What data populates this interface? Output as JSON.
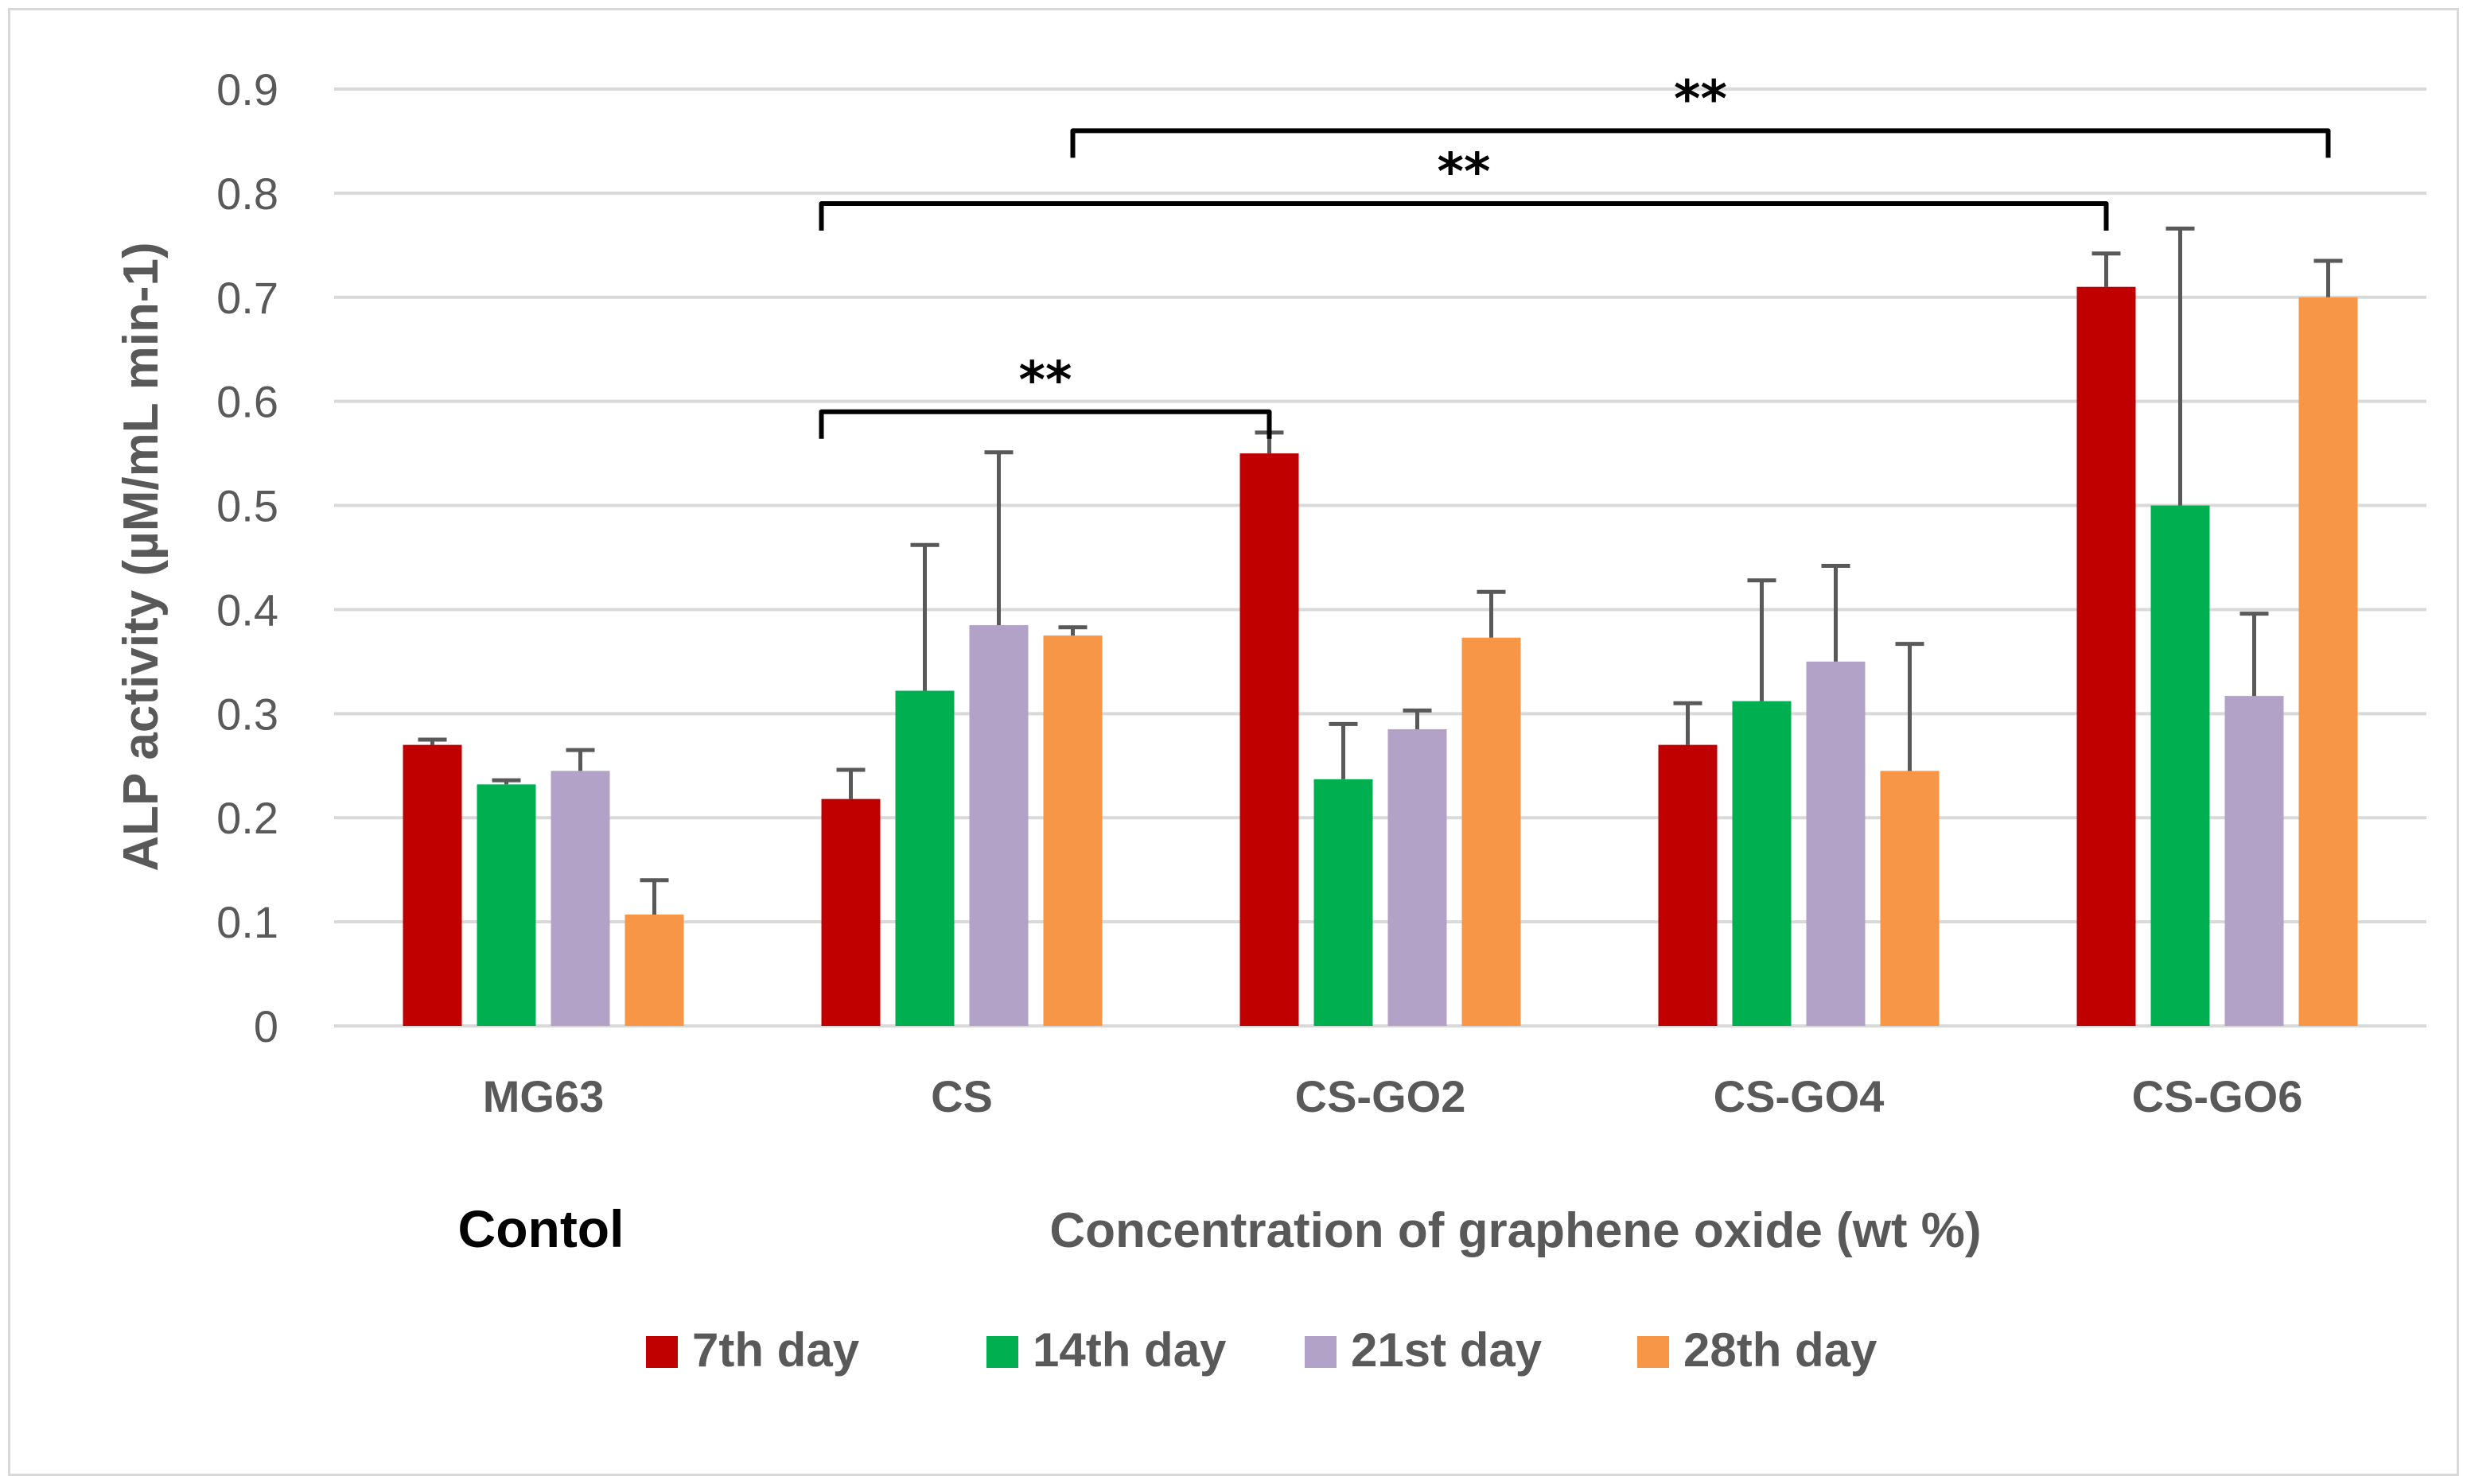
{
  "chart_data": {
    "type": "bar",
    "ylabel": "ALP activity (µM/mL min-1)",
    "xlabel": "Concentration of graphene oxide (wt %)",
    "control_label": "Contol",
    "ylim": [
      0,
      0.9
    ],
    "yticks": [
      "0",
      "0.1",
      "0.2",
      "0.3",
      "0.4",
      "0.5",
      "0.6",
      "0.7",
      "0.8",
      "0.9"
    ],
    "grid": true,
    "legend_position": "bottom",
    "categories": [
      "MG63",
      "CS",
      "CS-GO2",
      "CS-GO4",
      "CS-GO6"
    ],
    "series": [
      {
        "name": "7th day",
        "color": "#c00000",
        "values": [
          0.27,
          0.218,
          0.55,
          0.27,
          0.71
        ],
        "errors": [
          0.005,
          0.028,
          0.02,
          0.04,
          0.032
        ]
      },
      {
        "name": "14th day",
        "color": "#00b050",
        "values": [
          0.232,
          0.322,
          0.237,
          0.312,
          0.5
        ],
        "errors": [
          0.004,
          0.14,
          0.053,
          0.116,
          0.266
        ]
      },
      {
        "name": "21st day",
        "color": "#b3a2c7",
        "values": [
          0.245,
          0.385,
          0.285,
          0.35,
          0.317
        ],
        "errors": [
          0.02,
          0.166,
          0.018,
          0.092,
          0.079
        ]
      },
      {
        "name": "28th day",
        "color": "#f79646",
        "values": [
          0.107,
          0.375,
          0.373,
          0.245,
          0.7
        ],
        "errors": [
          0.033,
          0.008,
          0.044,
          0.122,
          0.035
        ]
      }
    ],
    "significance": [
      {
        "label": "**",
        "from_category": "CS",
        "to_category": "CS-GO2",
        "level": 0.59
      },
      {
        "label": "**",
        "from_category": "CS",
        "to_category": "CS-GO6",
        "level": 0.79
      },
      {
        "label": "**",
        "from_category": "CS",
        "to_category": "CS-GO6",
        "level": 0.86
      }
    ]
  }
}
